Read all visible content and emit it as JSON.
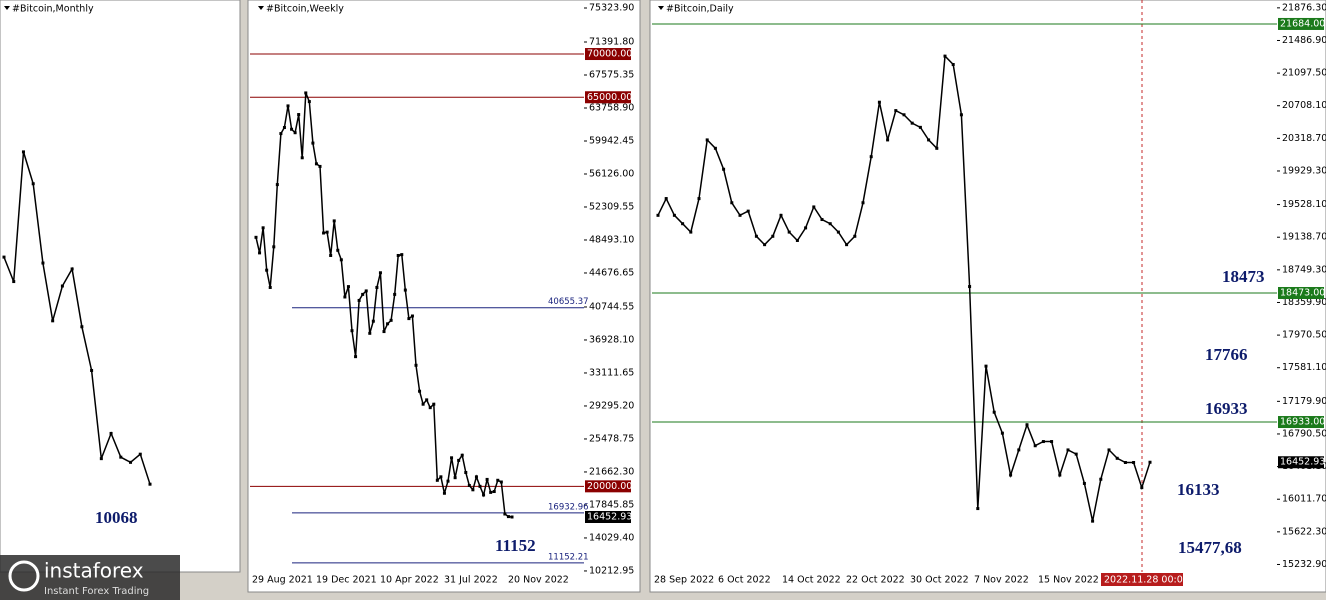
{
  "panels": [
    {
      "title": "#Bitcoin,Monthly",
      "ylim": [
        4600,
        81800
      ],
      "closes": [
        47100,
        43800,
        61300,
        57000,
        46300,
        38500,
        43200,
        45500,
        37700,
        31800,
        19900,
        23300,
        20100,
        19400,
        20500,
        16450
      ],
      "annotations": [
        "10068"
      ]
    },
    {
      "title": "#Bitcoin,Weekly",
      "ylim": [
        10092,
        76249
      ],
      "yticks": [
        {
          "value": 75323.9,
          "label": "75323.90"
        },
        {
          "value": 71391.8,
          "label": "71391.80"
        },
        {
          "value": 67575.35,
          "label": "67575.35"
        },
        {
          "value": 63758.9,
          "label": "63758.90"
        },
        {
          "value": 59942.45,
          "label": "59942.45"
        },
        {
          "value": 56126,
          "label": "56126.00"
        },
        {
          "value": 52309.55,
          "label": "52309.55"
        },
        {
          "value": 48493.1,
          "label": "48493.10"
        },
        {
          "value": 44676.65,
          "label": "44676.65"
        },
        {
          "value": 40744.55,
          "label": "40744.55"
        },
        {
          "value": 36928.1,
          "label": "36928.10"
        },
        {
          "value": 33111.65,
          "label": "33111.65"
        },
        {
          "value": 29295.2,
          "label": "29295.20"
        },
        {
          "value": 25478.75,
          "label": "25478.75"
        },
        {
          "value": 21662.3,
          "label": "21662.30"
        },
        {
          "value": 17845.85,
          "label": "17845.85"
        },
        {
          "value": 14029.4,
          "label": "14029.40"
        },
        {
          "value": 10212.95,
          "label": "10212.95"
        }
      ],
      "dates": [
        "29 Aug 2021",
        "19 Dec 2021",
        "10 Apr 2022",
        "31 Jul 2022",
        "20 Nov 2022"
      ],
      "levels": [
        {
          "value": 70000,
          "label": "70000.00",
          "color": "#8b0000",
          "tag": true
        },
        {
          "value": 65000,
          "label": "65000.00",
          "color": "#8b0000",
          "tag": true
        },
        {
          "value": 20000,
          "label": "20000.00",
          "color": "#8b0000",
          "tag": true
        },
        {
          "value": 40655.37,
          "label": "40655.37",
          "color": "#1a237e",
          "tag": false
        },
        {
          "value": 16932.96,
          "label": "16932.96",
          "color": "#1a237e",
          "tag": false
        },
        {
          "value": 11152.21,
          "label": "11152.21",
          "color": "#1a237e",
          "tag": false
        }
      ],
      "price": {
        "value": 16452.93,
        "label": "16452.93"
      },
      "closes": [
        48800,
        47000,
        49900,
        45000,
        43000,
        47700,
        54900,
        60800,
        61500,
        64000,
        61300,
        60900,
        63000,
        58000,
        65500,
        64500,
        59700,
        57300,
        57000,
        49300,
        49400,
        46700,
        50700,
        47300,
        46200,
        41900,
        43100,
        38000,
        35000,
        41500,
        42200,
        42600,
        37700,
        39100,
        43000,
        44700,
        37900,
        38800,
        39200,
        42200,
        46700,
        46800,
        42700,
        39400,
        39700,
        34000,
        31000,
        29500,
        30000,
        29100,
        29500,
        20700,
        21100,
        19200,
        20600,
        23300,
        21000,
        23000,
        23600,
        21600,
        20100,
        19600,
        21100,
        20000,
        19000,
        20800,
        19300,
        19400,
        20700,
        20500,
        16800,
        16500,
        16453
      ],
      "annotations": [
        "11152"
      ]
    },
    {
      "title": "#Bitcoin,Daily",
      "ylim": [
        15143,
        21970
      ],
      "yticks": [
        {
          "value": 21876.3,
          "label": "21876.30"
        },
        {
          "value": 21486.9,
          "label": "21486.90"
        },
        {
          "value": 21097.5,
          "label": "21097.50"
        },
        {
          "value": 20708.1,
          "label": "20708.10"
        },
        {
          "value": 20318.7,
          "label": "20318.70"
        },
        {
          "value": 19929.3,
          "label": "19929.30"
        },
        {
          "value": 19528.1,
          "label": "19528.10"
        },
        {
          "value": 19138.7,
          "label": "19138.70"
        },
        {
          "value": 18749.3,
          "label": "18749.30"
        },
        {
          "value": 18359.9,
          "label": "18359.90"
        },
        {
          "value": 17970.5,
          "label": "17970.50"
        },
        {
          "value": 17581.1,
          "label": "17581.10"
        },
        {
          "value": 17179.9,
          "label": "17179.90"
        },
        {
          "value": 16790.5,
          "label": "16790.50"
        },
        {
          "value": 16401.1,
          "label": "16401.10"
        },
        {
          "value": 16011.7,
          "label": "16011.70"
        },
        {
          "value": 15622.3,
          "label": "15622.30"
        },
        {
          "value": 15232.9,
          "label": "15232.90"
        }
      ],
      "dates": [
        "28 Sep 2022",
        "6 Oct 2022",
        "14 Oct 2022",
        "22 Oct 2022",
        "30 Oct 2022",
        "7 Nov 2022",
        "15 Nov 2022"
      ],
      "cursor_date": "2022.11.28 00:00",
      "levels": [
        {
          "value": 21684,
          "label": "21684.00",
          "color": "#1b7a1b",
          "tag": true
        },
        {
          "value": 18473,
          "label": "18473.00",
          "color": "#1b7a1b",
          "tag": true
        },
        {
          "value": 16933,
          "label": "16933.00",
          "color": "#1b7a1b",
          "tag": true
        }
      ],
      "price": {
        "value": 16452.93,
        "label": "16452.93"
      },
      "closes": [
        19400,
        19600,
        19400,
        19300,
        19200,
        19600,
        20300,
        20200,
        19950,
        19550,
        19400,
        19450,
        19150,
        19050,
        19150,
        19400,
        19200,
        19100,
        19250,
        19500,
        19350,
        19300,
        19200,
        19050,
        19150,
        19550,
        20100,
        20750,
        20300,
        20650,
        20600,
        20500,
        20450,
        20300,
        20200,
        21300,
        21200,
        20600,
        18550,
        15900,
        17600,
        17050,
        16800,
        16300,
        16600,
        16900,
        16650,
        16700,
        16700,
        16300,
        16600,
        16550,
        16200,
        15750,
        16250,
        16600,
        16500,
        16450,
        16450,
        16150,
        16453
      ],
      "annotations": [
        "18473",
        "17766",
        "16933",
        "16133",
        "15477,68"
      ]
    }
  ],
  "logo": {
    "name": "instaforex",
    "tagline": "Instant Forex Trading"
  }
}
